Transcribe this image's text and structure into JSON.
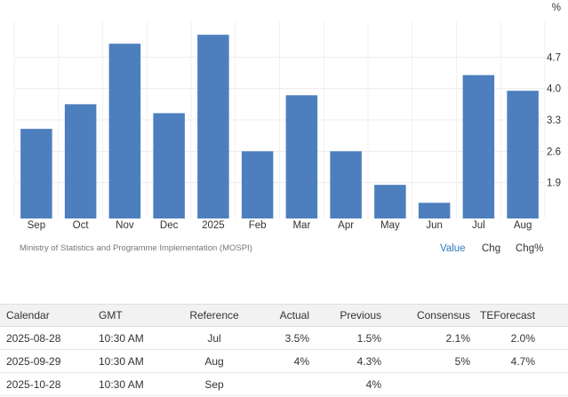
{
  "chart_data": {
    "type": "bar",
    "categories": [
      "Sep",
      "Oct",
      "Nov",
      "Dec",
      "2025",
      "Feb",
      "Mar",
      "Apr",
      "May",
      "Jun",
      "Jul",
      "Aug"
    ],
    "values": [
      3.1,
      3.65,
      5.0,
      3.45,
      5.2,
      2.6,
      3.85,
      2.6,
      1.85,
      1.45,
      4.3,
      3.95
    ],
    "yticks": [
      "1.9",
      "2.6",
      "3.3",
      "4.0",
      "4.7"
    ],
    "ytick_values": [
      1.9,
      2.6,
      3.3,
      4.0,
      4.7
    ],
    "unit": "%",
    "ylim": [
      1.1,
      5.5
    ],
    "grid": true,
    "bar_color": "#4d7fbe"
  },
  "source": "Ministry of Statistics and Programme Implementation (MOSPI)",
  "modes": {
    "value": "Value",
    "chg": "Chg",
    "chg_pct": "Chg%"
  },
  "calendar": {
    "headers": {
      "calendar": "Calendar",
      "gmt": "GMT",
      "reference": "Reference",
      "actual": "Actual",
      "previous": "Previous",
      "consensus": "Consensus",
      "forecast": "TEForecast"
    },
    "rows": [
      {
        "date": "2025-08-28",
        "time": "10:30 AM",
        "reference": "Jul",
        "actual": "3.5%",
        "previous": "1.5%",
        "consensus": "2.1%",
        "forecast": "2.0%"
      },
      {
        "date": "2025-09-29",
        "time": "10:30 AM",
        "reference": "Aug",
        "actual": "4%",
        "previous": "4.3%",
        "consensus": "5%",
        "forecast": "4.7%"
      },
      {
        "date": "2025-10-28",
        "time": "10:30 AM",
        "reference": "Sep",
        "actual": "",
        "previous": "4%",
        "consensus": "",
        "forecast": ""
      }
    ]
  }
}
